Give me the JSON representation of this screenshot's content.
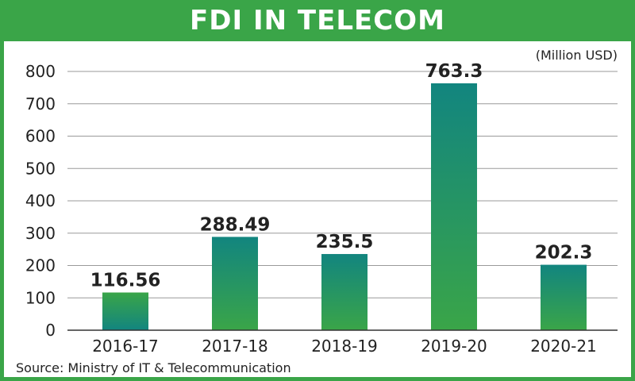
{
  "title": "FDI IN TELECOM",
  "unit": "(Million USD)",
  "source": "Source: Ministry of IT & Telecommunication",
  "colors": {
    "green": "#3aa548",
    "teal": "#12857f",
    "grid": "#9a9a9a",
    "text": "#222222"
  },
  "chart_data": {
    "type": "bar",
    "title": "FDI IN TELECOM",
    "ylabel": "(Million USD)",
    "xlabel": "",
    "categories": [
      "2016-17",
      "2017-18",
      "2018-19",
      "2019-20",
      "2020-21"
    ],
    "values": [
      116.56,
      288.49,
      235.5,
      763.3,
      202.3
    ],
    "value_labels": [
      "116.56",
      "288.49",
      "235.5",
      "763.3",
      "202.3"
    ],
    "ylim": [
      0,
      800
    ],
    "yticks": [
      0,
      100,
      200,
      300,
      400,
      500,
      600,
      700,
      800
    ],
    "grid": true,
    "legend": "none"
  }
}
